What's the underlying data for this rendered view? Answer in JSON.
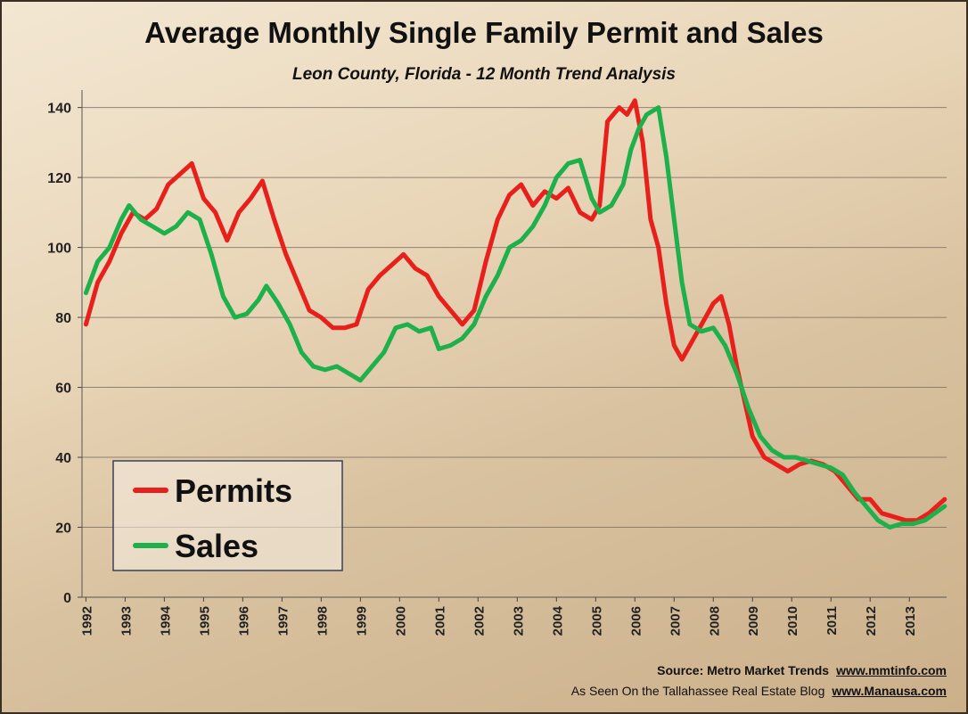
{
  "chart_data": {
    "type": "line",
    "title": "Average Monthly Single Family Permit and Sales",
    "subtitle": "Leon County, Florida - 12 Month Trend Analysis",
    "xlim": [
      1991.9,
      2013.95
    ],
    "xticks": [
      1992,
      1993,
      1994,
      1995,
      1996,
      1997,
      1998,
      1999,
      2000,
      2001,
      2002,
      2003,
      2004,
      2005,
      2006,
      2007,
      2008,
      2009,
      2010,
      2011,
      2012,
      2013
    ],
    "ylim": [
      0,
      145
    ],
    "yticks": [
      0,
      20,
      40,
      60,
      80,
      100,
      120,
      140
    ],
    "grid": true,
    "legend": "bottom-left",
    "series": [
      {
        "name": "Permits",
        "color": "#e8201c",
        "x": [
          1992.0,
          1992.3,
          1992.6,
          1992.9,
          1993.2,
          1993.5,
          1993.8,
          1994.1,
          1994.4,
          1994.7,
          1995.0,
          1995.3,
          1995.6,
          1995.9,
          1996.2,
          1996.5,
          1996.8,
          1997.1,
          1997.4,
          1997.7,
          1998.0,
          1998.3,
          1998.6,
          1998.9,
          1999.2,
          1999.5,
          1999.8,
          2000.1,
          2000.4,
          2000.7,
          2001.0,
          2001.3,
          2001.6,
          2001.9,
          2002.2,
          2002.5,
          2002.8,
          2003.1,
          2003.4,
          2003.7,
          2004.0,
          2004.3,
          2004.6,
          2004.9,
          2005.1,
          2005.3,
          2005.6,
          2005.8,
          2006.0,
          2006.2,
          2006.4,
          2006.6,
          2006.8,
          2007.0,
          2007.2,
          2007.4,
          2007.6,
          2007.8,
          2008.0,
          2008.2,
          2008.4,
          2008.6,
          2008.8,
          2009.0,
          2009.3,
          2009.6,
          2009.9,
          2010.2,
          2010.5,
          2010.8,
          2011.1,
          2011.4,
          2011.7,
          2012.0,
          2012.3,
          2012.6,
          2012.9,
          2013.2,
          2013.5,
          2013.9
        ],
        "values": [
          78,
          90,
          96,
          104,
          110,
          108,
          111,
          118,
          121,
          124,
          114,
          110,
          102,
          110,
          114,
          119,
          108,
          98,
          90,
          82,
          80,
          77,
          77,
          78,
          88,
          92,
          95,
          98,
          94,
          92,
          86,
          82,
          78,
          82,
          96,
          108,
          115,
          118,
          112,
          116,
          114,
          117,
          110,
          108,
          112,
          136,
          140,
          138,
          142,
          130,
          108,
          100,
          84,
          72,
          68,
          72,
          76,
          80,
          84,
          86,
          78,
          66,
          56,
          46,
          40,
          38,
          36,
          38,
          39,
          38,
          36,
          32,
          28,
          28,
          24,
          23,
          22,
          22,
          24,
          28
        ]
      },
      {
        "name": "Sales",
        "color": "#1eb04a",
        "x": [
          1992.0,
          1992.3,
          1992.6,
          1992.9,
          1993.1,
          1993.4,
          1993.7,
          1994.0,
          1994.3,
          1994.6,
          1994.9,
          1995.2,
          1995.5,
          1995.8,
          1996.1,
          1996.4,
          1996.6,
          1996.9,
          1997.2,
          1997.5,
          1997.8,
          1998.1,
          1998.4,
          1998.7,
          1999.0,
          1999.3,
          1999.6,
          1999.9,
          2000.2,
          2000.5,
          2000.8,
          2001.0,
          2001.3,
          2001.6,
          2001.9,
          2002.2,
          2002.5,
          2002.8,
          2003.1,
          2003.4,
          2003.7,
          2004.0,
          2004.3,
          2004.6,
          2004.9,
          2005.1,
          2005.4,
          2005.7,
          2005.9,
          2006.1,
          2006.3,
          2006.6,
          2006.8,
          2007.0,
          2007.2,
          2007.4,
          2007.7,
          2008.0,
          2008.3,
          2008.6,
          2008.9,
          2009.2,
          2009.5,
          2009.8,
          2010.1,
          2010.4,
          2010.7,
          2011.0,
          2011.3,
          2011.6,
          2011.9,
          2012.2,
          2012.5,
          2012.8,
          2013.1,
          2013.4,
          2013.9
        ],
        "values": [
          87,
          96,
          100,
          108,
          112,
          108,
          106,
          104,
          106,
          110,
          108,
          98,
          86,
          80,
          81,
          85,
          89,
          84,
          78,
          70,
          66,
          65,
          66,
          64,
          62,
          66,
          70,
          77,
          78,
          76,
          77,
          71,
          72,
          74,
          78,
          86,
          92,
          100,
          102,
          106,
          112,
          120,
          124,
          125,
          114,
          110,
          112,
          118,
          128,
          134,
          138,
          140,
          126,
          108,
          90,
          78,
          76,
          77,
          72,
          64,
          54,
          46,
          42,
          40,
          40,
          39,
          38,
          37,
          35,
          30,
          26,
          22,
          20,
          21,
          21,
          22,
          26
        ]
      }
    ],
    "source": {
      "text": "Source: Metro Market Trends",
      "url": "www.mmtinfo.com"
    },
    "credit": {
      "text": "As Seen On the Tallahassee Real Estate Blog",
      "url": "www.Manausa.com"
    }
  }
}
